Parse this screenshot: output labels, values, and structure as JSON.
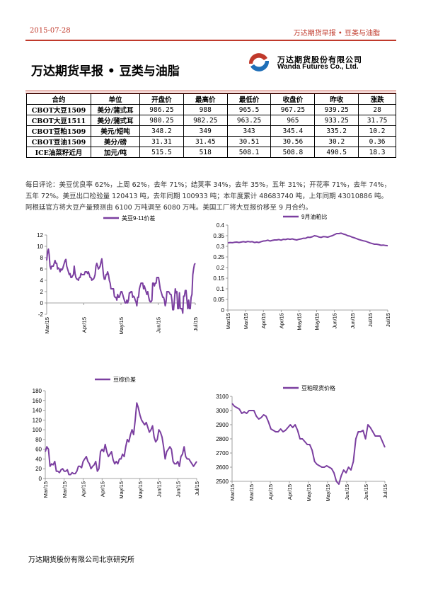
{
  "header": {
    "date": "2015-07-28",
    "right_title": "万达期货早报 • 豆类与油脂"
  },
  "report_title": "万达期货早报 • 豆类与油脂",
  "logo": {
    "cn": "万达期货股份有限公司",
    "en": "Wanda Futures Co., Ltd."
  },
  "table": {
    "headers": [
      "合约",
      "单位",
      "开盘价",
      "最高价",
      "最低价",
      "收盘价",
      "昨收",
      "涨跌"
    ],
    "rows": [
      [
        "CBOT大豆1509",
        "美分/蒲式耳",
        "986.25",
        "988",
        "965.5",
        "967.25",
        "939.25",
        "28"
      ],
      [
        "CBOT大豆1511",
        "美分/蒲式耳",
        "980.25",
        "982.25",
        "963.25",
        "965",
        "933.25",
        "31.75"
      ],
      [
        "CBOT豆粕1509",
        "美元/短吨",
        "348.2",
        "349",
        "343",
        "345.4",
        "335.2",
        "10.2"
      ],
      [
        "CBOT豆油1509",
        "美分/磅",
        "31.31",
        "31.45",
        "30.51",
        "30.56",
        "30.2",
        "0.36"
      ],
      [
        "ICE油菜籽近月",
        "加元/吨",
        "515.5",
        "518",
        "508.1",
        "508.8",
        "490.5",
        "18.3"
      ]
    ]
  },
  "comment": "每日评论：美豆优良率 62%，上周 62%，去年 71%；结荚率 34%，去年 35%，五年 31%；开花率 71%，去年 74%，五年 72%。美豆出口检验量 120413 吨，去年同期 100933 吨；本年度累计 48683740 吨，上年同期 43010886 吨。阿根廷官方将大豆产量预测由 6100 万吨调至 6080 万吨。美国工厂将大豆报价移至 9 月合约。",
  "footer": "万达期货股份有限公司北京研究所",
  "colors": {
    "accent": "#c0392b",
    "series": "#7b3fa0"
  },
  "chart_data": [
    {
      "type": "line",
      "series": [
        {
          "name": "美豆9-11价差",
          "values": [
            7.5,
            9,
            9.5,
            8.5,
            6.5,
            6,
            6.5,
            6.5,
            6.5,
            7,
            7.5,
            7,
            7,
            6,
            6.2,
            6,
            5.5,
            6,
            5.8,
            6,
            6.5,
            7,
            7.5,
            7.7,
            6.5,
            6,
            5.5,
            5,
            5.2,
            4.5,
            4.5,
            4.8,
            5,
            6.5,
            5.2,
            4.5,
            4.2,
            4.2,
            4,
            4.5,
            4.5,
            5.2,
            5,
            5,
            5,
            5,
            5.5,
            5.5,
            5.5,
            5.2,
            5.5,
            5,
            4.5,
            4.5,
            4,
            4.2,
            4.2,
            4.5,
            5,
            6.5,
            7,
            6.5,
            6,
            6.2,
            6.5,
            7.2,
            7.8,
            6.5,
            5,
            4.2,
            4.2,
            5,
            5,
            5.5,
            5,
            4,
            3.5,
            2.5,
            2.5,
            2.5,
            2.5,
            1.2,
            1,
            1,
            0.5,
            1.5,
            1,
            1,
            1.5,
            2,
            2,
            1.5,
            1,
            0.5,
            0,
            0,
            0.5,
            0,
            0.5,
            1.8,
            1.8,
            2,
            2,
            1,
            1.2,
            1,
            0.5,
            0.2,
            -0.5,
            1,
            1,
            2.5,
            3,
            3.5,
            3.5,
            3.5,
            2.5,
            3,
            2.5,
            2,
            1.5,
            2,
            1.2,
            0.5,
            0.2,
            0.2,
            0.5,
            3.5,
            3.5,
            3,
            3.5,
            3.5,
            4.5,
            4.5,
            4.5,
            3.5,
            2.5,
            2,
            1.5,
            1,
            1,
            0.5,
            -0.5,
            0.2,
            2,
            2,
            2,
            1.8,
            1.5,
            1.5,
            0.5,
            -1.2,
            -1.2,
            0.5,
            2.5,
            1.8,
            2,
            -1,
            -1,
            1.8,
            -1,
            -1,
            -1,
            -1.8,
            1.2,
            1.2,
            2.2,
            2.2,
            0.5,
            -1,
            0.5,
            -1,
            -1,
            1,
            1.5,
            5,
            6,
            6.8,
            7
          ]
        }
      ],
      "xlabels": [
        "Mar/15",
        "Apr/15",
        "May/15",
        "Jun/15",
        "Jul/15"
      ],
      "ylim": [
        -2,
        12
      ],
      "yticks": [
        -2,
        0,
        2,
        4,
        6,
        8,
        10,
        12
      ]
    },
    {
      "type": "line",
      "series": [
        {
          "name": "9月油粕比",
          "values": [
            0.316,
            0.318,
            0.317,
            0.319,
            0.32,
            0.318,
            0.32,
            0.322,
            0.32,
            0.323,
            0.321,
            0.322,
            0.318,
            0.32,
            0.318,
            0.322,
            0.325,
            0.326,
            0.329,
            0.325,
            0.328,
            0.33,
            0.33,
            0.332,
            0.329,
            0.333,
            0.332,
            0.335,
            0.333,
            0.335,
            0.332,
            0.33,
            0.333,
            0.335,
            0.338,
            0.338,
            0.343,
            0.342,
            0.345,
            0.35,
            0.348,
            0.344,
            0.342,
            0.346,
            0.345,
            0.343,
            0.347,
            0.35,
            0.355,
            0.36,
            0.36,
            0.362,
            0.358,
            0.355,
            0.35,
            0.348,
            0.343,
            0.34,
            0.336,
            0.332,
            0.329,
            0.326,
            0.324,
            0.32,
            0.316,
            0.313,
            0.31,
            0.31,
            0.308,
            0.305,
            0.306,
            0.304,
            0.303
          ]
        }
      ],
      "xlabels": [
        "Mar/15",
        "Mar/15",
        "Apr/15",
        "Apr/15",
        "May/15",
        "May/15",
        "Jun/15",
        "Jun/15",
        "Jul/15",
        "Jul/15"
      ],
      "ylim": [
        0,
        0.4
      ],
      "yticks": [
        0,
        0.05,
        0.1,
        0.15,
        0.2,
        0.25,
        0.3,
        0.35,
        0.4
      ]
    },
    {
      "type": "line",
      "series": [
        {
          "name": "豆棕价差",
          "values": [
            55,
            65,
            60,
            25,
            30,
            28,
            35,
            15,
            15,
            12,
            18,
            20,
            15,
            15,
            18,
            8,
            8,
            12,
            10,
            10,
            15,
            25,
            25,
            22,
            35,
            40,
            45,
            35,
            30,
            20,
            25,
            28,
            35,
            15,
            20,
            55,
            60,
            55,
            70,
            55,
            45,
            50,
            55,
            38,
            30,
            35,
            30,
            40,
            40,
            50,
            45,
            65,
            80,
            75,
            90,
            100,
            90,
            120,
            155,
            145,
            130,
            120,
            115,
            110,
            115,
            105,
            95,
            100,
            108,
            85,
            75,
            80,
            100,
            95,
            85,
            65,
            40,
            55,
            60,
            65,
            60,
            35,
            30,
            30,
            35,
            25,
            45,
            50,
            65,
            45,
            40,
            40,
            35,
            30,
            25,
            30,
            35
          ]
        }
      ],
      "xlabels": [
        "Mar/15",
        "Mar/15",
        "Apr/15",
        "Apr/15",
        "May/15",
        "May/15",
        "Jun/15",
        "Jun/15",
        "Jul/15"
      ],
      "ylim": [
        0,
        180
      ],
      "yticks": [
        0,
        20,
        40,
        60,
        80,
        100,
        120,
        140,
        160,
        180
      ]
    },
    {
      "type": "line",
      "series": [
        {
          "name": "豆粕现货价格",
          "values": [
            3050,
            3030,
            3020,
            3010,
            2980,
            2990,
            2980,
            3000,
            3000,
            3000,
            2960,
            2940,
            2950,
            2970,
            2960,
            2920,
            2870,
            2860,
            2850,
            2850,
            2870,
            2850,
            2860,
            2880,
            2900,
            2880,
            2900,
            2860,
            2800,
            2800,
            2780,
            2760,
            2760,
            2720,
            2640,
            2620,
            2610,
            2600,
            2600,
            2610,
            2600,
            2590,
            2560,
            2500,
            2480,
            2540,
            2580,
            2560,
            2600,
            2580,
            2640,
            2800,
            2850,
            2850,
            2860,
            2800,
            2900,
            2880,
            2850,
            2820,
            2820,
            2820,
            2780,
            2740
          ]
        }
      ],
      "xlabels": [
        "Mar/15",
        "Mar/15",
        "Apr/15",
        "Apr/15",
        "May/15",
        "May/15",
        "Jun/15",
        "Jun/15",
        "Jul/15"
      ],
      "ylim": [
        2500,
        3100
      ],
      "yticks": [
        2500,
        2600,
        2700,
        2800,
        2900,
        3000,
        3100
      ]
    }
  ]
}
